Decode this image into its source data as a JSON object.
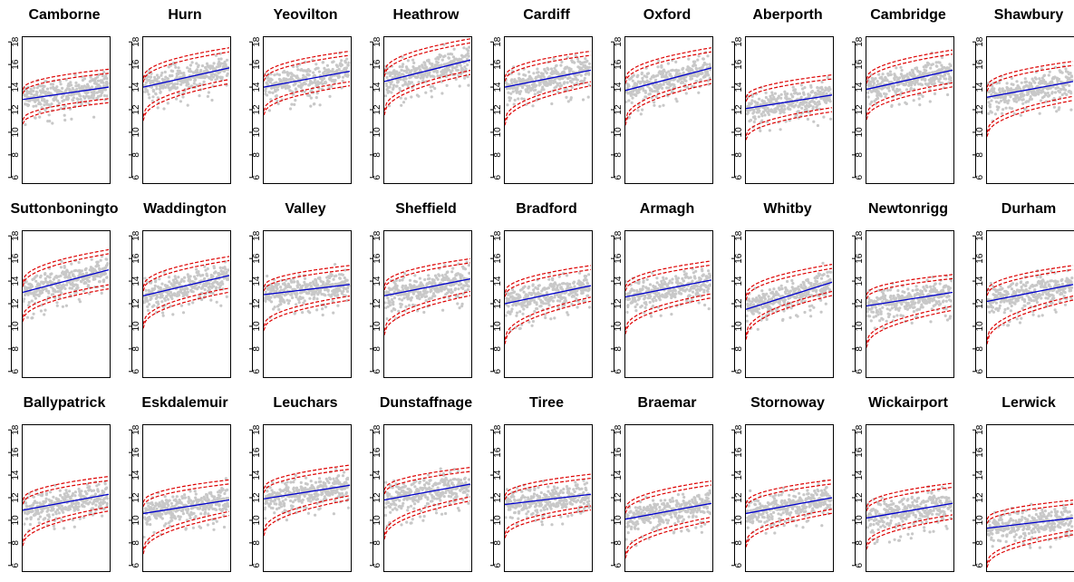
{
  "chart_data": {
    "type": "scatter",
    "layout": "3 rows x 9 columns of small multiples",
    "shared_y_axis": {
      "range": [
        5.5,
        18.5
      ],
      "ticks": [
        6,
        8,
        10,
        12,
        14,
        16,
        18
      ],
      "tick_orientation": "rotated vertical"
    },
    "x_axis": "not labelled (no ticks shown)",
    "grid": false,
    "legend": "none",
    "colors": {
      "points": "#c8c8c8",
      "trend": "#0000cc",
      "bounds": "#dd0000",
      "frame": "#000000"
    },
    "series_roles": [
      "grey points: observations",
      "blue solid line: fitted trend",
      "red dashed lines: upper and lower bands"
    ],
    "panels": [
      {
        "title": "Camborne",
        "trend": [
          12.9,
          14.0
        ],
        "upper_band": [
          13.6,
          15.4
        ],
        "lower_band": [
          10.9,
          12.8
        ]
      },
      {
        "title": "Hurn",
        "trend": [
          14.0,
          15.7
        ],
        "upper_band": [
          14.6,
          17.3
        ],
        "lower_band": [
          11.2,
          14.5
        ]
      },
      {
        "title": "Yeovilton",
        "trend": [
          14.0,
          15.4
        ],
        "upper_band": [
          14.7,
          17.0
        ],
        "lower_band": [
          11.7,
          14.3
        ]
      },
      {
        "title": "Heathrow",
        "trend": [
          14.5,
          16.4
        ],
        "upper_band": [
          15.1,
          18.1
        ],
        "lower_band": [
          11.7,
          15.3
        ]
      },
      {
        "title": "Cardiff",
        "trend": [
          14.0,
          15.5
        ],
        "upper_band": [
          14.7,
          17.0
        ],
        "lower_band": [
          10.8,
          14.3
        ]
      },
      {
        "title": "Oxford",
        "trend": [
          13.7,
          15.7
        ],
        "upper_band": [
          14.5,
          17.3
        ],
        "lower_band": [
          10.8,
          14.5
        ]
      },
      {
        "title": "Aberporth",
        "trend": [
          12.1,
          13.3
        ],
        "upper_band": [
          12.9,
          14.9
        ],
        "lower_band": [
          9.5,
          12.0
        ]
      },
      {
        "title": "Cambridge",
        "trend": [
          13.8,
          15.5
        ],
        "upper_band": [
          14.5,
          17.1
        ],
        "lower_band": [
          11.3,
          14.2
        ]
      },
      {
        "title": "Shawbury",
        "trend": [
          13.1,
          14.5
        ],
        "upper_band": [
          13.8,
          16.1
        ],
        "lower_band": [
          9.8,
          13.0
        ]
      },
      {
        "title": "Suttonboningto",
        "trend": [
          13.0,
          15.0
        ],
        "upper_band": [
          13.7,
          16.6
        ],
        "lower_band": [
          10.6,
          13.5
        ]
      },
      {
        "title": "Waddington",
        "trend": [
          12.7,
          14.5
        ],
        "upper_band": [
          13.3,
          16.0
        ],
        "lower_band": [
          10.0,
          13.2
        ]
      },
      {
        "title": "Valley",
        "trend": [
          12.8,
          13.7
        ],
        "upper_band": [
          13.3,
          15.2
        ],
        "lower_band": [
          9.8,
          12.5
        ]
      },
      {
        "title": "Sheffield",
        "trend": [
          12.7,
          14.2
        ],
        "upper_band": [
          13.4,
          15.8
        ],
        "lower_band": [
          9.4,
          12.9
        ]
      },
      {
        "title": "Bradford",
        "trend": [
          12.0,
          13.6
        ],
        "upper_band": [
          12.8,
          15.2
        ],
        "lower_band": [
          8.6,
          12.4
        ]
      },
      {
        "title": "Armagh",
        "trend": [
          12.6,
          14.1
        ],
        "upper_band": [
          13.3,
          15.6
        ],
        "lower_band": [
          9.5,
          12.7
        ]
      },
      {
        "title": "Whitby",
        "trend": [
          11.5,
          13.9
        ],
        "upper_band": [
          12.5,
          15.3
        ],
        "lower_band": [
          9.0,
          12.9
        ]
      },
      {
        "title": "Newtonrigg",
        "trend": [
          11.8,
          13.0
        ],
        "upper_band": [
          12.6,
          14.4
        ],
        "lower_band": [
          8.3,
          11.6
        ]
      },
      {
        "title": "Durham",
        "trend": [
          12.2,
          13.7
        ],
        "upper_band": [
          12.9,
          15.2
        ],
        "lower_band": [
          8.6,
          12.5
        ]
      },
      {
        "title": "Ballypatrick",
        "trend": [
          10.9,
          12.3
        ],
        "upper_band": [
          11.6,
          13.7
        ],
        "lower_band": [
          7.9,
          11.0
        ]
      },
      {
        "title": "Eskdalemuir",
        "trend": [
          10.6,
          11.8
        ],
        "upper_band": [
          11.4,
          13.4
        ],
        "lower_band": [
          7.2,
          10.6
        ]
      },
      {
        "title": "Leuchars",
        "trend": [
          11.9,
          13.1
        ],
        "upper_band": [
          12.6,
          14.7
        ],
        "lower_band": [
          8.8,
          12.0
        ]
      },
      {
        "title": "Dunstaffnage",
        "trend": [
          11.8,
          13.2
        ],
        "upper_band": [
          12.5,
          14.5
        ],
        "lower_band": [
          8.5,
          11.9
        ]
      },
      {
        "title": "Tiree",
        "trend": [
          11.4,
          12.3
        ],
        "upper_band": [
          12.0,
          13.9
        ],
        "lower_band": [
          8.6,
          11.1
        ]
      },
      {
        "title": "Braemar",
        "trend": [
          10.1,
          11.5
        ],
        "upper_band": [
          10.8,
          13.3
        ],
        "lower_band": [
          6.8,
          10.1
        ]
      },
      {
        "title": "Stornoway",
        "trend": [
          10.6,
          12.0
        ],
        "upper_band": [
          11.3,
          13.4
        ],
        "lower_band": [
          7.8,
          10.8
        ]
      },
      {
        "title": "Wickairport",
        "trend": [
          10.2,
          11.5
        ],
        "upper_band": [
          11.0,
          13.1
        ],
        "lower_band": [
          7.6,
          10.3
        ]
      },
      {
        "title": "Lerwick",
        "trend": [
          9.3,
          10.2
        ],
        "upper_band": [
          9.9,
          11.6
        ],
        "lower_band": [
          6.0,
          8.9
        ]
      }
    ]
  }
}
